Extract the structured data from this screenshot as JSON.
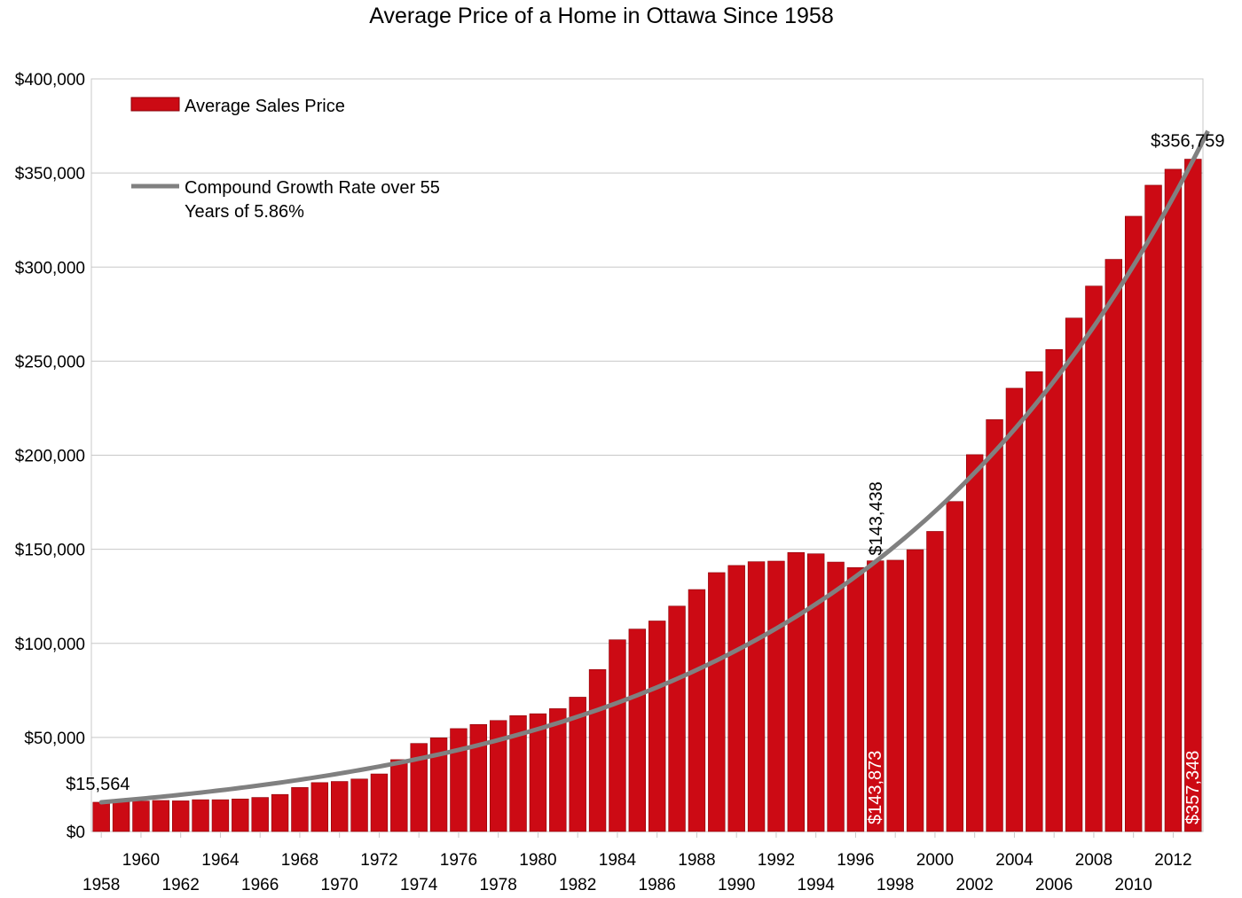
{
  "chart_data": {
    "type": "bar",
    "title": "Average Price of a Home in Ottawa Since 1958",
    "xlabel": "",
    "ylabel": "",
    "ylim": [
      0,
      400000
    ],
    "y_ticks": [
      "$0",
      "$50,000",
      "$100,000",
      "$150,000",
      "$200,000",
      "$250,000",
      "$300,000",
      "$350,000",
      "$400,000"
    ],
    "grid": true,
    "legend_position": "top-left",
    "categories": [
      1958,
      1959,
      1960,
      1961,
      1962,
      1963,
      1964,
      1965,
      1966,
      1967,
      1968,
      1969,
      1970,
      1971,
      1972,
      1973,
      1974,
      1975,
      1976,
      1977,
      1978,
      1979,
      1980,
      1981,
      1982,
      1983,
      1984,
      1985,
      1986,
      1987,
      1988,
      1989,
      1990,
      1991,
      1992,
      1993,
      1994,
      1995,
      1996,
      1997,
      1998,
      1999,
      2000,
      2001,
      2002,
      2003,
      2004,
      2005,
      2006,
      2007,
      2008,
      2009,
      2010,
      2011,
      2012,
      2013
    ],
    "x_tick_labels": [
      "1958",
      "1960",
      "1962",
      "1964",
      "1966",
      "1968",
      "1970",
      "1972",
      "1974",
      "1976",
      "1978",
      "1980",
      "1982",
      "1984",
      "1986",
      "1988",
      "1990",
      "1992",
      "1994",
      "1996",
      "1998",
      "2000",
      "2002",
      "2004",
      "2006",
      "2008",
      "2010",
      "2012"
    ],
    "series": [
      {
        "name": "Average Sales Price",
        "type": "bar",
        "color": "#cc0a14",
        "values": [
          15564,
          15800,
          16200,
          16500,
          16300,
          16900,
          16900,
          17300,
          18100,
          19700,
          23400,
          26000,
          26600,
          27900,
          30600,
          38200,
          46800,
          49800,
          54700,
          56900,
          59000,
          61600,
          62600,
          65300,
          71400,
          86100,
          101900,
          107600,
          111900,
          119800,
          128600,
          137600,
          141400,
          143400,
          143700,
          148300,
          147600,
          143200,
          140300,
          143873,
          144200,
          149800,
          159500,
          175400,
          200300,
          218900,
          235600,
          244400,
          256200,
          272900,
          289900,
          304100,
          327000,
          343500,
          352000,
          357348
        ]
      },
      {
        "name": "Compound Growth Rate over 55 Years of 5.86%",
        "type": "line",
        "color": "#808080",
        "start_value": 15564,
        "growth_rate": 0.0586
      }
    ],
    "annotations": [
      {
        "text": "$15,564",
        "year": 1958,
        "color": "#000000",
        "rotated": false
      },
      {
        "text": "$143,438",
        "year": 1997,
        "color": "#000000",
        "rotated": true
      },
      {
        "text": "$356,759",
        "year": 2013,
        "color": "#000000",
        "rotated": false
      },
      {
        "text": "$143,873",
        "year": 1997,
        "color": "#ffffff",
        "rotated": true
      },
      {
        "text": "$357,348",
        "year": 2013,
        "color": "#ffffff",
        "rotated": true
      }
    ]
  }
}
